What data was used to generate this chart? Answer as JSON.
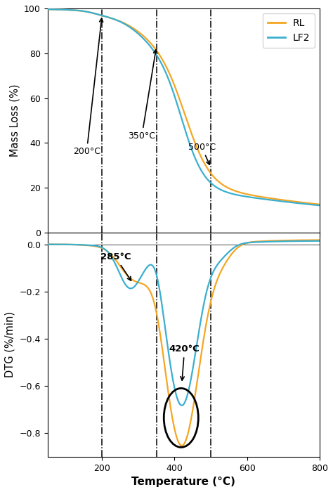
{
  "tg_title": "Mass Loss (%)",
  "dtg_title": "DTG (%/min)",
  "xlabel": "Temperature (°C)",
  "rl_color": "#F5A623",
  "lf2_color": "#3AAFD0",
  "vline_temps": [
    200,
    350,
    500
  ],
  "xlim": [
    50,
    800
  ],
  "tg_ylim": [
    0,
    100
  ],
  "dtg_ylim": [
    -0.9,
    0.05
  ],
  "tg_yticks": [
    0,
    20,
    40,
    60,
    80,
    100
  ],
  "dtg_yticks": [
    -0.8,
    -0.6,
    -0.4,
    -0.2,
    0.0
  ],
  "xticks": [
    200,
    400,
    600,
    800
  ]
}
